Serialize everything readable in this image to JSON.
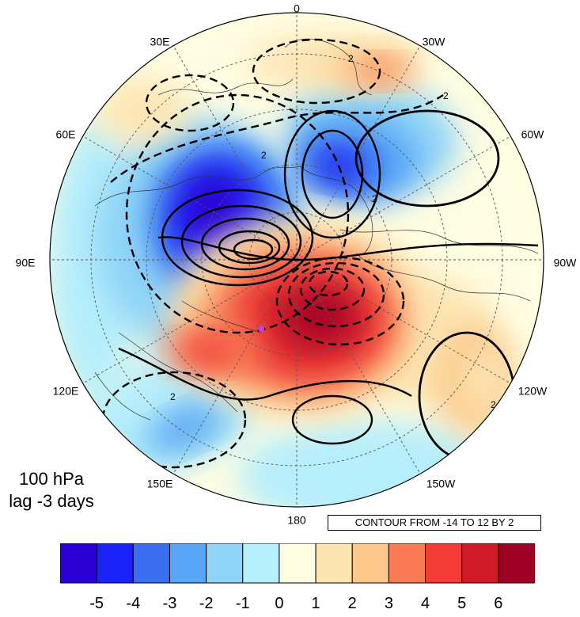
{
  "map": {
    "projection": "north polar stereographic",
    "longitude_labels": [
      "0",
      "30W",
      "60W",
      "90W",
      "120W",
      "150W",
      "180",
      "150E",
      "120E",
      "90E",
      "60E",
      "30E"
    ],
    "fill_colors": [
      "#2a00d4",
      "#1a22f5",
      "#3c6ef2",
      "#58a6f5",
      "#8fd4f7",
      "#b6eefb",
      "#fffde2",
      "#fde5b2",
      "#fbc88a",
      "#f77c55",
      "#f23c37",
      "#d11a2a",
      "#a00025"
    ],
    "contour_label": "2",
    "marker_color": "#d23bd6"
  },
  "caption": {
    "level": "100 hPa",
    "lag": "lag -3 days"
  },
  "contour_note": "CONTOUR FROM -14 TO 12 BY 2",
  "colorbar": {
    "tick_labels": [
      "-5",
      "-4",
      "-3",
      "-2",
      "-1",
      "0",
      "1",
      "2",
      "3",
      "4",
      "5",
      "6"
    ]
  }
}
